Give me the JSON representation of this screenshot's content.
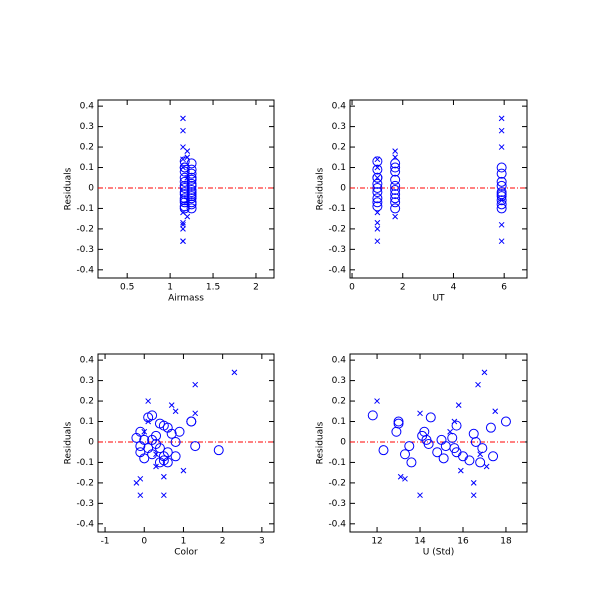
{
  "chart_data": [
    {
      "type": "scatter",
      "xlabel": "Airmass",
      "ylabel": "Residuals",
      "xlim": [
        0.16,
        2.21
      ],
      "ylim": [
        -0.44,
        0.43
      ],
      "xticks": [
        0.5,
        1,
        1.5,
        2
      ],
      "yticks": [
        -0.4,
        -0.3,
        -0.2,
        -0.1,
        0,
        0.1,
        0.2,
        0.3,
        0.4
      ],
      "hline": {
        "value": 0,
        "color": "#ff0000"
      },
      "series": [
        {
          "marker": "circle",
          "color": "#0000ff",
          "x": [
            1.17,
            1.25,
            1.17,
            1.25,
            1.17,
            1.25,
            1.17,
            1.25,
            1.17,
            1.25,
            1.17,
            1.25,
            1.17,
            1.25,
            1.17,
            1.25,
            1.17,
            1.25,
            1.17,
            1.25,
            1.17,
            1.25,
            1.17,
            1.25,
            1.17,
            1.25,
            1.17,
            1.25,
            1.17,
            1.25
          ],
          "y": [
            0.13,
            0.12,
            0.1,
            0.09,
            0.08,
            0.07,
            0.05,
            0.04,
            0.03,
            0.02,
            0.01,
            0.01,
            0,
            -0.01,
            -0.02,
            -0.02,
            -0.03,
            -0.04,
            -0.05,
            -0.05,
            -0.06,
            -0.07,
            -0.07,
            -0.08,
            -0.09,
            -0.1,
            -0.1,
            0.05,
            0.1,
            -0.03
          ]
        },
        {
          "marker": "x",
          "color": "#0000ff",
          "x": [
            1.15,
            1.15,
            1.15,
            1.2,
            1.2,
            1.15,
            1.15,
            1.15,
            1.2,
            1.15,
            1.15,
            1.15,
            1.15,
            1.15,
            1.2,
            1.2
          ],
          "y": [
            0.34,
            0.28,
            0.2,
            0.18,
            0.15,
            0.14,
            0.1,
            -0.12,
            -0.14,
            -0.17,
            -0.18,
            -0.2,
            -0.26,
            -0.26,
            0.05,
            -0.06
          ]
        }
      ]
    },
    {
      "type": "scatter",
      "xlabel": "UT",
      "ylabel": "Residuals",
      "xlim": [
        -0.08,
        6.9
      ],
      "ylim": [
        -0.44,
        0.43
      ],
      "xticks": [
        0,
        2,
        4,
        6
      ],
      "yticks": [
        -0.4,
        -0.3,
        -0.2,
        -0.1,
        0,
        0.1,
        0.2,
        0.3,
        0.4
      ],
      "hline": {
        "value": 0,
        "color": "#ff0000"
      },
      "series": [
        {
          "marker": "circle",
          "color": "#0000ff",
          "x": [
            1.0,
            1.7,
            5.9,
            1.0,
            1.7,
            5.9,
            1.0,
            1.7,
            5.9,
            1.0,
            1.7,
            5.9,
            1.0,
            1.7,
            5.9,
            1.0,
            1.7,
            5.9,
            1.0,
            1.7,
            5.9,
            1.0,
            1.7,
            5.9,
            1.0,
            1.7,
            5.9,
            1.0,
            1.7,
            5.9
          ],
          "y": [
            0.13,
            0.12,
            0.1,
            0.09,
            0.08,
            0.07,
            0.05,
            0.04,
            0.03,
            0.02,
            0.01,
            0.01,
            0,
            -0.01,
            -0.02,
            -0.02,
            -0.03,
            -0.04,
            -0.05,
            -0.05,
            -0.06,
            -0.07,
            -0.07,
            -0.08,
            -0.09,
            -0.1,
            -0.1,
            0.05,
            0.1,
            -0.03
          ]
        },
        {
          "marker": "x",
          "color": "#0000ff",
          "x": [
            5.9,
            5.9,
            5.9,
            1.7,
            1.7,
            1.0,
            1.0,
            1.0,
            1.7,
            1.0,
            5.9,
            1.0,
            1.0,
            5.9,
            1.0,
            5.9
          ],
          "y": [
            0.34,
            0.28,
            0.2,
            0.18,
            0.15,
            0.14,
            0.1,
            -0.12,
            -0.14,
            -0.17,
            -0.18,
            -0.2,
            -0.26,
            -0.26,
            0.05,
            -0.06
          ]
        }
      ]
    },
    {
      "type": "scatter",
      "xlabel": "Color",
      "ylabel": "Residuals",
      "xlim": [
        -1.18,
        3.31
      ],
      "ylim": [
        -0.44,
        0.43
      ],
      "xticks": [
        -1,
        0,
        1,
        2,
        3
      ],
      "yticks": [
        -0.4,
        -0.3,
        -0.2,
        -0.1,
        0,
        0.1,
        0.2,
        0.3,
        0.4
      ],
      "hline": {
        "value": 0,
        "color": "#ff0000"
      },
      "series": [
        {
          "marker": "circle",
          "color": "#0000ff",
          "x": [
            0.2,
            0.1,
            1.2,
            0.4,
            0.5,
            0.6,
            -0.1,
            0.7,
            0.3,
            -0.2,
            0.0,
            0.2,
            0.8,
            0.3,
            1.3,
            -0.1,
            0.4,
            1.9,
            0.6,
            -0.1,
            0.2,
            0.5,
            0.8,
            0.0,
            0.5,
            0.4,
            0.6,
            0.9,
            1.2,
            0.1
          ],
          "y": [
            0.13,
            0.12,
            0.1,
            0.09,
            0.08,
            0.07,
            0.05,
            0.04,
            0.03,
            0.02,
            0.01,
            0.01,
            0,
            -0.01,
            -0.02,
            -0.02,
            -0.03,
            -0.04,
            -0.05,
            -0.05,
            -0.06,
            -0.07,
            -0.07,
            -0.08,
            -0.09,
            -0.1,
            -0.1,
            0.05,
            0.1,
            -0.03
          ]
        },
        {
          "marker": "x",
          "color": "#0000ff",
          "x": [
            2.3,
            1.3,
            0.1,
            0.7,
            0.8,
            1.3,
            0.1,
            0.3,
            1.0,
            0.5,
            -0.1,
            -0.2,
            -0.1,
            0.5,
            0.0,
            0.3
          ],
          "y": [
            0.34,
            0.28,
            0.2,
            0.18,
            0.15,
            0.14,
            0.1,
            -0.12,
            -0.14,
            -0.17,
            -0.18,
            -0.2,
            -0.26,
            -0.26,
            0.05,
            -0.06
          ]
        }
      ]
    },
    {
      "type": "scatter",
      "xlabel": "U (Std)",
      "ylabel": "Residuals",
      "xlim": [
        10.74,
        18.98
      ],
      "ylim": [
        -0.44,
        0.43
      ],
      "xticks": [
        12,
        14,
        16,
        18
      ],
      "yticks": [
        -0.4,
        -0.3,
        -0.2,
        -0.1,
        0,
        0.1,
        0.2,
        0.3,
        0.4
      ],
      "hline": {
        "value": 0,
        "color": "#ff0000"
      },
      "series": [
        {
          "marker": "circle",
          "color": "#0000ff",
          "x": [
            11.8,
            14.5,
            18.0,
            13.0,
            15.7,
            17.3,
            12.9,
            16.5,
            14.1,
            15.5,
            15.0,
            14.3,
            16.6,
            14.4,
            15.2,
            13.5,
            16.9,
            12.3,
            15.7,
            14.8,
            13.3,
            16.0,
            17.4,
            15.1,
            16.3,
            13.6,
            16.8,
            14.2,
            13.0,
            15.6
          ],
          "y": [
            0.13,
            0.12,
            0.1,
            0.09,
            0.08,
            0.07,
            0.05,
            0.04,
            0.03,
            0.02,
            0.01,
            0.01,
            0,
            -0.01,
            -0.02,
            -0.02,
            -0.03,
            -0.04,
            -0.05,
            -0.05,
            -0.06,
            -0.07,
            -0.07,
            -0.08,
            -0.09,
            -0.1,
            -0.1,
            0.05,
            0.1,
            -0.03
          ]
        },
        {
          "marker": "x",
          "color": "#0000ff",
          "x": [
            17.0,
            16.7,
            12.0,
            15.8,
            17.5,
            14.0,
            15.6,
            17.1,
            15.9,
            13.1,
            13.3,
            16.5,
            14.0,
            16.5,
            15.4,
            16.8
          ],
          "y": [
            0.34,
            0.28,
            0.2,
            0.18,
            0.15,
            0.14,
            0.1,
            -0.12,
            -0.14,
            -0.17,
            -0.18,
            -0.2,
            -0.26,
            -0.26,
            0.05,
            -0.06
          ]
        }
      ]
    }
  ]
}
